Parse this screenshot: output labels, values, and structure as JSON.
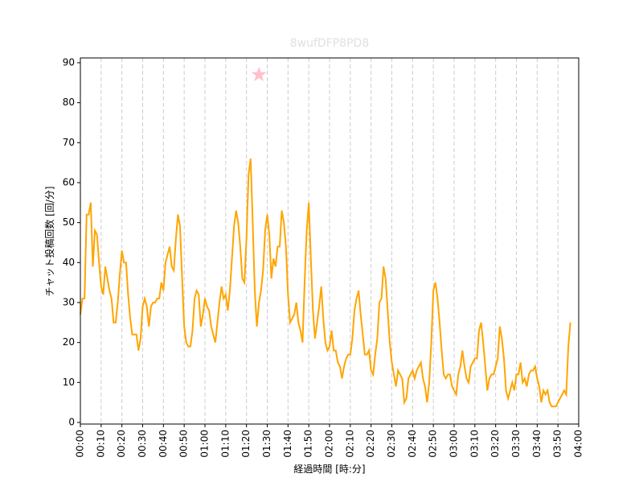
{
  "chart_data": {
    "type": "line",
    "title": "8wufDFP8PD8",
    "x_label": "経過時間 [時:分]",
    "y_label": "チャット投稿回数 [回/分]",
    "x": [
      0,
      1,
      2,
      3,
      4,
      5,
      6,
      7,
      8,
      9,
      10,
      11,
      12,
      13,
      14,
      15,
      16,
      17,
      18,
      19,
      20,
      21,
      22,
      23,
      24,
      25,
      26,
      27,
      28,
      29,
      30,
      31,
      32,
      33,
      34,
      35,
      36,
      37,
      38,
      39,
      40,
      41,
      42,
      43,
      44,
      45,
      46,
      47,
      48,
      49,
      50,
      51,
      52,
      53,
      54,
      55,
      56,
      57,
      58,
      59,
      60,
      61,
      62,
      63,
      64,
      65,
      66,
      67,
      68,
      69,
      70,
      71,
      72,
      73,
      74,
      75,
      76,
      77,
      78,
      79,
      80,
      81,
      82,
      83,
      84,
      85,
      86,
      87,
      88,
      89,
      90,
      91,
      92,
      93,
      94,
      95,
      96,
      97,
      98,
      99,
      100,
      101,
      102,
      103,
      104,
      105,
      106,
      107,
      108,
      109,
      110,
      111,
      112,
      113,
      114,
      115,
      116,
      117,
      118,
      119,
      120,
      121,
      122,
      123,
      124,
      125,
      126,
      127,
      128,
      129,
      130,
      131,
      132,
      133,
      134,
      135,
      136,
      137,
      138,
      139,
      140,
      141,
      142,
      143,
      144,
      145,
      146,
      147,
      148,
      149,
      150,
      151,
      152,
      153,
      154,
      155,
      156,
      157,
      158,
      159,
      160,
      161,
      162,
      163,
      164,
      165,
      166,
      167,
      168,
      169,
      170,
      171,
      172,
      173,
      174,
      175,
      176,
      177,
      178,
      179,
      180,
      181,
      182,
      183,
      184,
      185,
      186,
      187,
      188,
      189,
      190,
      191,
      192,
      193,
      194,
      195,
      196,
      197,
      198,
      199,
      200,
      201,
      202,
      203,
      204,
      205,
      206,
      207,
      208,
      209,
      210,
      211,
      212,
      213,
      214,
      215,
      216,
      217,
      218,
      219,
      220,
      221,
      222,
      223,
      224,
      225,
      226,
      227,
      228,
      229,
      230,
      231,
      232,
      233,
      234,
      235,
      236
    ],
    "series": [
      {
        "name": "chat",
        "color": "orange",
        "values": [
          27,
          31,
          31,
          52,
          52,
          55,
          39,
          48,
          47,
          40,
          34,
          32,
          39,
          36,
          33,
          31,
          25,
          25,
          30,
          37,
          43,
          40,
          40,
          32,
          26,
          22,
          22,
          22,
          18,
          21,
          29,
          31,
          29,
          24,
          29,
          30,
          30,
          31,
          31,
          35,
          33,
          40,
          42,
          44,
          39,
          38,
          46,
          52,
          49,
          36,
          24,
          20,
          19,
          19,
          23,
          31,
          33,
          32,
          24,
          27,
          31,
          29,
          28,
          24,
          22,
          20,
          25,
          30,
          34,
          31,
          32,
          28,
          33,
          41,
          49,
          53,
          50,
          44,
          36,
          35,
          46,
          62,
          66,
          50,
          33,
          24,
          30,
          33,
          38,
          48,
          52,
          47,
          36,
          41,
          39,
          44,
          44,
          53,
          50,
          44,
          32,
          25,
          26,
          27,
          30,
          25,
          23,
          20,
          35,
          48,
          55,
          41,
          28,
          21,
          25,
          29,
          34,
          26,
          20,
          18,
          19,
          23,
          18,
          18,
          15,
          14,
          11,
          14,
          16,
          17,
          17,
          21,
          28,
          31,
          33,
          27,
          22,
          17,
          17,
          18,
          13,
          12,
          17,
          21,
          30,
          31,
          39,
          36,
          28,
          20,
          15,
          12,
          9,
          13,
          12,
          11,
          5,
          6,
          11,
          12,
          13,
          11,
          13,
          14,
          15,
          11,
          9,
          5,
          10,
          20,
          33,
          35,
          31,
          25,
          18,
          12,
          11,
          12,
          12,
          9,
          8,
          7,
          12,
          14,
          18,
          14,
          11,
          10,
          14,
          15,
          16,
          16,
          23,
          25,
          20,
          14,
          8,
          11,
          12,
          12,
          14,
          16,
          24,
          21,
          16,
          8,
          6,
          8,
          10,
          8,
          12,
          12,
          15,
          10,
          11,
          9,
          12,
          13,
          13,
          14,
          11,
          9,
          5,
          8,
          7,
          8,
          5,
          4,
          4,
          4,
          5,
          6,
          7,
          8,
          7,
          19,
          25
        ]
      }
    ],
    "markers": [
      {
        "x": 86,
        "y": 87,
        "color": "pink",
        "shape": "star"
      }
    ],
    "xlim": [
      0,
      240
    ],
    "xticks": [
      {
        "value": 0,
        "label": "00:00"
      },
      {
        "value": 10,
        "label": "00:10"
      },
      {
        "value": 20,
        "label": "00:20"
      },
      {
        "value": 30,
        "label": "00:30"
      },
      {
        "value": 40,
        "label": "00:40"
      },
      {
        "value": 50,
        "label": "00:50"
      },
      {
        "value": 60,
        "label": "01:00"
      },
      {
        "value": 70,
        "label": "01:10"
      },
      {
        "value": 80,
        "label": "01:20"
      },
      {
        "value": 90,
        "label": "01:30"
      },
      {
        "value": 100,
        "label": "01:40"
      },
      {
        "value": 110,
        "label": "01:50"
      },
      {
        "value": 120,
        "label": "02:00"
      },
      {
        "value": 130,
        "label": "02:10"
      },
      {
        "value": 140,
        "label": "02:20"
      },
      {
        "value": 150,
        "label": "02:30"
      },
      {
        "value": 160,
        "label": "02:40"
      },
      {
        "value": 170,
        "label": "02:50"
      },
      {
        "value": 180,
        "label": "03:00"
      },
      {
        "value": 190,
        "label": "03:10"
      },
      {
        "value": 200,
        "label": "03:20"
      },
      {
        "value": 210,
        "label": "03:30"
      },
      {
        "value": 220,
        "label": "03:40"
      },
      {
        "value": 230,
        "label": "03:50"
      },
      {
        "value": 240,
        "label": "04:00"
      }
    ],
    "ylim": [
      -0.4,
      91.2
    ],
    "yticks": [
      0,
      10,
      20,
      30,
      40,
      50,
      60,
      70,
      80,
      90
    ],
    "grid": "x"
  }
}
